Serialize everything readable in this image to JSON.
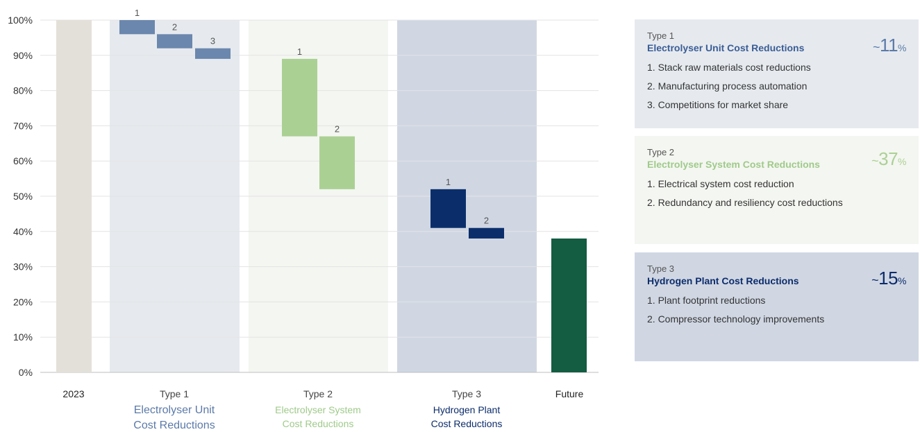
{
  "chart_data": {
    "type": "bar",
    "subtype": "waterfall",
    "yticks": [
      "100%",
      "90%",
      "80%",
      "70%",
      "60%",
      "50%",
      "40%",
      "30%",
      "20%",
      "10%",
      "0%"
    ],
    "ylim": [
      0,
      100
    ],
    "grid": true,
    "columns": [
      {
        "key": "start",
        "label": "2023",
        "value": 100,
        "color": "#e3e0da"
      },
      {
        "key": "t1",
        "type_label": "Type 1",
        "label_lines": [
          "Electrolyser Unit",
          "Cost Reductions"
        ],
        "label_color": "#5b7aa8",
        "band_color": "#e6eaef",
        "bars": [
          {
            "label": "1",
            "from": 100,
            "to": 96,
            "color": "#6b87ad"
          },
          {
            "label": "2",
            "from": 96,
            "to": 92,
            "color": "#6b87ad"
          },
          {
            "label": "3",
            "from": 92,
            "to": 89,
            "color": "#6b87ad"
          }
        ]
      },
      {
        "key": "t2",
        "type_label": "Type 2",
        "label_lines": [
          "Electrolyser System",
          "Cost Reductions"
        ],
        "label_color": "#9fca8a",
        "band_color": "#f4f6f1",
        "bars": [
          {
            "label": "1",
            "from": 89,
            "to": 67,
            "color": "#abd094"
          },
          {
            "label": "2",
            "from": 67,
            "to": 52,
            "color": "#abd094"
          }
        ]
      },
      {
        "key": "t3",
        "type_label": "Type 3",
        "label_lines": [
          "Hydrogen Plant",
          "Cost Reductions"
        ],
        "label_color": "#0c2c6b",
        "band_color": "#d0d7e3",
        "bars": [
          {
            "label": "1",
            "from": 52,
            "to": 41,
            "color": "#0b2e6b"
          },
          {
            "label": "2",
            "from": 41,
            "to": 38,
            "color": "#0b2e6b"
          }
        ]
      },
      {
        "key": "end",
        "label": "Future",
        "value": 38,
        "color": "#145c42"
      }
    ]
  },
  "panels": [
    {
      "type_label": "Type 1",
      "title": "Electrolyser Unit Cost Reductions",
      "tilde": "~",
      "pct": "11",
      "unit": "%",
      "title_color": "#3b5d95",
      "pct_color": "#5b7aa8",
      "bg": "#e6eaef",
      "items": [
        "1.  Stack raw materials cost reductions",
        "2. Manufacturing process automation",
        "3. Competitions for market share"
      ]
    },
    {
      "type_label": "Type 2",
      "title": "Electrolyser System Cost Reductions",
      "tilde": "~",
      "pct": "37",
      "unit": "%",
      "title_color": "#9fca8a",
      "pct_color": "#abd094",
      "bg": "#f4f6f1",
      "items": [
        "1.  Electrical system cost reduction",
        "2. Redundancy and resiliency cost reductions"
      ]
    },
    {
      "type_label": "Type 3",
      "title": "Hydrogen Plant Cost Reductions",
      "tilde": "~",
      "pct": "15",
      "unit": "%",
      "title_color": "#0c2c6b",
      "pct_color": "#0c2c6b",
      "bg": "#d0d7e3",
      "items": [
        "1.  Plant footprint reductions",
        "2. Compressor technology improvements"
      ]
    }
  ]
}
